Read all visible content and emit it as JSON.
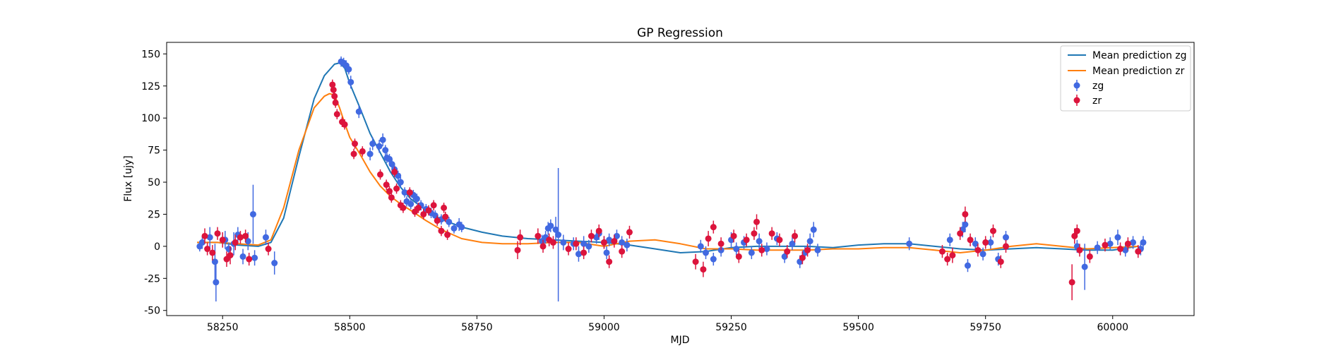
{
  "chart_data": {
    "type": "scatter",
    "title": "GP Regression",
    "xlabel": "MJD",
    "ylabel": "Flux [ujy]",
    "xlim": [
      58140,
      60160
    ],
    "ylim": [
      -54,
      159
    ],
    "xticks": [
      58250,
      58500,
      58750,
      59000,
      59250,
      59500,
      59750,
      60000
    ],
    "yticks": [
      -50,
      -25,
      0,
      25,
      50,
      75,
      100,
      125,
      150
    ],
    "legend_position": "top-right",
    "grid": false,
    "series": [
      {
        "name": "Mean prediction zg",
        "kind": "line",
        "color": "#1f77b4",
        "x": [
          58200,
          58240,
          58280,
          58320,
          58345,
          58370,
          58400,
          58430,
          58450,
          58470,
          58480,
          58490,
          58500,
          58520,
          58540,
          58560,
          58580,
          58600,
          58620,
          58650,
          58680,
          58720,
          58760,
          58800,
          58850,
          58900,
          58950,
          59000,
          59050,
          59100,
          59150,
          59200,
          59250,
          59300,
          59350,
          59400,
          59450,
          59500,
          59550,
          59600,
          59650,
          59700,
          59750,
          59800,
          59850,
          59900,
          59950,
          60000,
          60050
        ],
        "y": [
          3,
          3,
          1,
          0,
          3,
          22,
          70,
          115,
          133,
          142,
          143,
          139,
          127,
          108,
          88,
          73,
          58,
          46,
          37,
          28,
          21,
          15,
          11,
          8,
          6,
          5,
          4,
          3,
          1,
          -2,
          -5,
          -4,
          -1,
          0,
          0,
          0,
          -1,
          1,
          2,
          2,
          0,
          -2,
          -3,
          -2,
          -1,
          -2,
          -3,
          -3,
          0
        ]
      },
      {
        "name": "Mean prediction zr",
        "kind": "line",
        "color": "#ff7f0e",
        "x": [
          58200,
          58240,
          58280,
          58320,
          58345,
          58370,
          58400,
          58430,
          58450,
          58460,
          58470,
          58480,
          58490,
          58500,
          58520,
          58540,
          58560,
          58580,
          58600,
          58620,
          58650,
          58680,
          58720,
          58760,
          58800,
          58850,
          58900,
          58950,
          59000,
          59050,
          59100,
          59150,
          59200,
          59250,
          59300,
          59350,
          59400,
          59450,
          59500,
          59550,
          59600,
          59650,
          59700,
          59750,
          59800,
          59850,
          59900,
          59950,
          60000,
          60050
        ],
        "y": [
          3,
          3,
          2,
          1,
          5,
          30,
          75,
          108,
          117,
          119,
          118,
          108,
          96,
          85,
          72,
          58,
          47,
          39,
          33,
          28,
          20,
          13,
          6,
          3,
          2,
          2,
          3,
          3,
          0,
          4,
          5,
          2,
          -2,
          -2,
          -3,
          -3,
          -3,
          -2,
          -2,
          -1,
          -1,
          -3,
          -5,
          -3,
          0,
          2,
          0,
          -2,
          -1,
          0
        ]
      },
      {
        "name": "zg",
        "kind": "errorbar",
        "color": "#4169e1",
        "points": [
          [
            58205,
            0,
            4
          ],
          [
            58210,
            3,
            5
          ],
          [
            58225,
            7,
            8
          ],
          [
            58235,
            -12,
            14
          ],
          [
            58237,
            -28,
            15
          ],
          [
            58255,
            5,
            7
          ],
          [
            58262,
            -2,
            5
          ],
          [
            58272,
            2,
            9
          ],
          [
            58280,
            9,
            6
          ],
          [
            58290,
            -8,
            6
          ],
          [
            58300,
            4,
            7
          ],
          [
            58310,
            25,
            23
          ],
          [
            58313,
            -9,
            6
          ],
          [
            58335,
            7,
            6
          ],
          [
            58352,
            -13,
            9
          ],
          [
            58483,
            144,
            4
          ],
          [
            58488,
            143,
            4
          ],
          [
            58493,
            141,
            4
          ],
          [
            58498,
            138,
            4
          ],
          [
            58502,
            128,
            5
          ],
          [
            58518,
            105,
            5
          ],
          [
            58540,
            72,
            5
          ],
          [
            58545,
            80,
            5
          ],
          [
            58558,
            78,
            5
          ],
          [
            58565,
            83,
            5
          ],
          [
            58570,
            75,
            4
          ],
          [
            58573,
            69,
            4
          ],
          [
            58578,
            68,
            4
          ],
          [
            58583,
            64,
            4
          ],
          [
            58588,
            60,
            4
          ],
          [
            58595,
            55,
            4
          ],
          [
            58600,
            50,
            4
          ],
          [
            58608,
            42,
            4
          ],
          [
            58612,
            35,
            4
          ],
          [
            58620,
            33,
            4
          ],
          [
            58625,
            40,
            4
          ],
          [
            58632,
            37,
            4
          ],
          [
            58640,
            32,
            4
          ],
          [
            58650,
            29,
            4
          ],
          [
            58660,
            26,
            4
          ],
          [
            58668,
            24,
            4
          ],
          [
            58680,
            21,
            4
          ],
          [
            58695,
            19,
            4
          ],
          [
            58705,
            14,
            4
          ],
          [
            58715,
            17,
            5
          ],
          [
            58720,
            15,
            4
          ],
          [
            58878,
            4,
            5
          ],
          [
            58885,
            7,
            5
          ],
          [
            58890,
            14,
            5
          ],
          [
            58895,
            16,
            5
          ],
          [
            58905,
            13,
            10
          ],
          [
            58910,
            9,
            52
          ],
          [
            58920,
            3,
            6
          ],
          [
            58940,
            2,
            5
          ],
          [
            58950,
            -6,
            6
          ],
          [
            58960,
            2,
            6
          ],
          [
            58970,
            0,
            5
          ],
          [
            58985,
            7,
            5
          ],
          [
            58990,
            10,
            5
          ],
          [
            59000,
            3,
            5
          ],
          [
            59005,
            -5,
            5
          ],
          [
            59010,
            5,
            5
          ],
          [
            59025,
            8,
            5
          ],
          [
            59035,
            3,
            5
          ],
          [
            59045,
            1,
            5
          ],
          [
            59190,
            0,
            5
          ],
          [
            59200,
            -5,
            5
          ],
          [
            59215,
            -10,
            5
          ],
          [
            59230,
            -3,
            5
          ],
          [
            59250,
            5,
            6
          ],
          [
            59260,
            -2,
            5
          ],
          [
            59275,
            3,
            5
          ],
          [
            59290,
            -5,
            5
          ],
          [
            59305,
            4,
            6
          ],
          [
            59320,
            -2,
            5
          ],
          [
            59340,
            6,
            5
          ],
          [
            59355,
            -8,
            5
          ],
          [
            59370,
            2,
            5
          ],
          [
            59385,
            -12,
            5
          ],
          [
            59395,
            -5,
            5
          ],
          [
            59405,
            4,
            6
          ],
          [
            59412,
            13,
            6
          ],
          [
            59420,
            -3,
            5
          ],
          [
            59600,
            2,
            5
          ],
          [
            59680,
            5,
            5
          ],
          [
            59705,
            13,
            6
          ],
          [
            59710,
            17,
            6
          ],
          [
            59715,
            -15,
            5
          ],
          [
            59730,
            2,
            5
          ],
          [
            59745,
            -6,
            5
          ],
          [
            59760,
            3,
            5
          ],
          [
            59775,
            -10,
            5
          ],
          [
            59790,
            7,
            5
          ],
          [
            59930,
            0,
            5
          ],
          [
            59945,
            -16,
            18
          ],
          [
            59970,
            -1,
            5
          ],
          [
            59995,
            2,
            5
          ],
          [
            60010,
            7,
            6
          ],
          [
            60025,
            -3,
            5
          ],
          [
            60040,
            3,
            5
          ],
          [
            60055,
            -2,
            5
          ],
          [
            60060,
            3,
            5
          ]
        ]
      },
      {
        "name": "zr",
        "kind": "errorbar",
        "color": "#dc143c",
        "points": [
          [
            58215,
            8,
            6
          ],
          [
            58220,
            -2,
            5
          ],
          [
            58230,
            -5,
            6
          ],
          [
            58240,
            10,
            5
          ],
          [
            58250,
            5,
            6
          ],
          [
            58258,
            -10,
            6
          ],
          [
            58265,
            -7,
            7
          ],
          [
            58275,
            3,
            6
          ],
          [
            58285,
            7,
            5
          ],
          [
            58295,
            8,
            5
          ],
          [
            58302,
            -10,
            5
          ],
          [
            58340,
            -2,
            5
          ],
          [
            58466,
            126,
            4
          ],
          [
            58468,
            122,
            4
          ],
          [
            58470,
            117,
            4
          ],
          [
            58472,
            112,
            4
          ],
          [
            58475,
            103,
            4
          ],
          [
            58485,
            97,
            4
          ],
          [
            58490,
            95,
            4
          ],
          [
            58508,
            72,
            4
          ],
          [
            58510,
            80,
            4
          ],
          [
            58525,
            74,
            4
          ],
          [
            58560,
            56,
            4
          ],
          [
            58572,
            48,
            4
          ],
          [
            58578,
            43,
            4
          ],
          [
            58582,
            38,
            4
          ],
          [
            58588,
            58,
            4
          ],
          [
            58592,
            45,
            4
          ],
          [
            58600,
            32,
            4
          ],
          [
            58605,
            30,
            4
          ],
          [
            58618,
            42,
            4
          ],
          [
            58628,
            27,
            4
          ],
          [
            58635,
            30,
            4
          ],
          [
            58645,
            25,
            4
          ],
          [
            58655,
            28,
            4
          ],
          [
            58665,
            32,
            4
          ],
          [
            58672,
            20,
            4
          ],
          [
            58680,
            12,
            4
          ],
          [
            58685,
            30,
            4
          ],
          [
            58688,
            23,
            4
          ],
          [
            58692,
            9,
            4
          ],
          [
            58830,
            -3,
            7
          ],
          [
            58835,
            7,
            6
          ],
          [
            58870,
            8,
            6
          ],
          [
            58880,
            0,
            5
          ],
          [
            58892,
            5,
            5
          ],
          [
            58900,
            3,
            5
          ],
          [
            58930,
            -2,
            5
          ],
          [
            58945,
            2,
            5
          ],
          [
            58960,
            -5,
            5
          ],
          [
            58975,
            8,
            5
          ],
          [
            58990,
            12,
            5
          ],
          [
            59000,
            3,
            5
          ],
          [
            59010,
            -12,
            5
          ],
          [
            59020,
            4,
            5
          ],
          [
            59035,
            -4,
            5
          ],
          [
            59050,
            11,
            5
          ],
          [
            59180,
            -12,
            6
          ],
          [
            59195,
            -18,
            6
          ],
          [
            59205,
            6,
            6
          ],
          [
            59215,
            15,
            5
          ],
          [
            59230,
            2,
            5
          ],
          [
            59255,
            8,
            5
          ],
          [
            59265,
            -8,
            5
          ],
          [
            59280,
            5,
            5
          ],
          [
            59295,
            10,
            5
          ],
          [
            59300,
            19,
            6
          ],
          [
            59310,
            -3,
            5
          ],
          [
            59330,
            10,
            5
          ],
          [
            59345,
            5,
            5
          ],
          [
            59360,
            -4,
            5
          ],
          [
            59375,
            8,
            5
          ],
          [
            59390,
            -9,
            5
          ],
          [
            59400,
            -3,
            5
          ],
          [
            59665,
            -4,
            5
          ],
          [
            59675,
            -10,
            5
          ],
          [
            59685,
            -7,
            6
          ],
          [
            59700,
            10,
            5
          ],
          [
            59710,
            25,
            6
          ],
          [
            59720,
            5,
            5
          ],
          [
            59735,
            -3,
            5
          ],
          [
            59750,
            3,
            5
          ],
          [
            59765,
            12,
            5
          ],
          [
            59780,
            -12,
            5
          ],
          [
            59790,
            0,
            5
          ],
          [
            59920,
            -28,
            14
          ],
          [
            59925,
            8,
            6
          ],
          [
            59930,
            12,
            5
          ],
          [
            59935,
            -3,
            5
          ],
          [
            59955,
            -8,
            5
          ],
          [
            59985,
            1,
            5
          ],
          [
            60015,
            -2,
            5
          ],
          [
            60030,
            2,
            5
          ],
          [
            60050,
            -4,
            5
          ]
        ]
      }
    ]
  }
}
